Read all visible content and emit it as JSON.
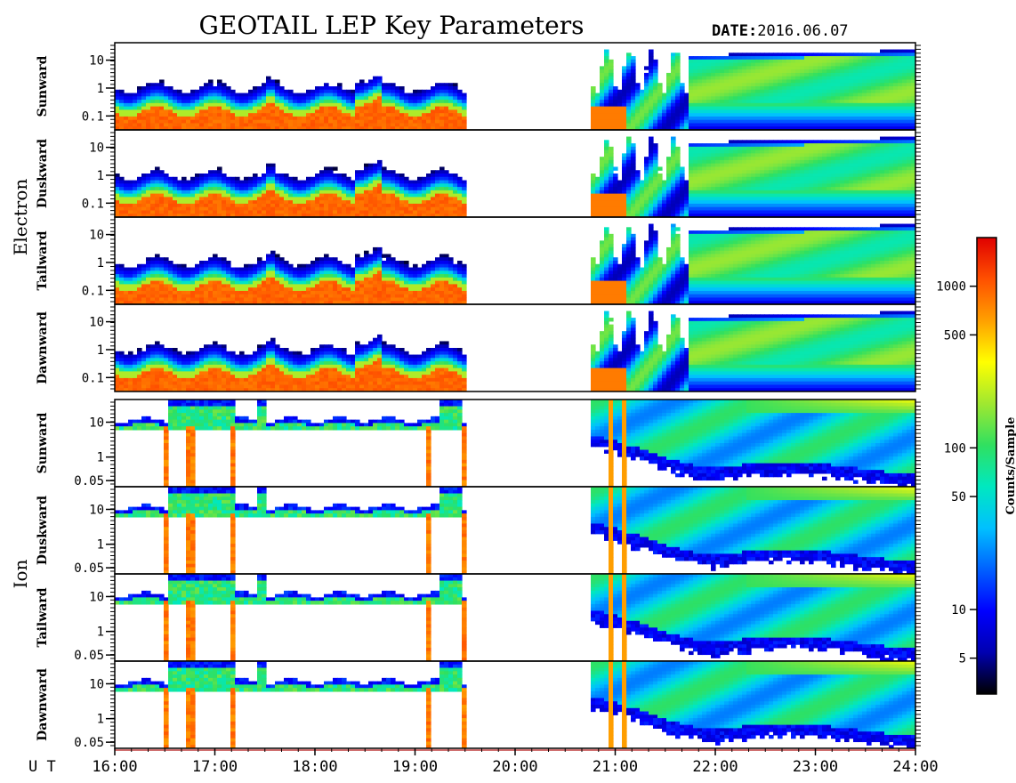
{
  "title": "GEOTAIL LEP Key Parameters",
  "date_label": "DATE:",
  "date_value": "2016.06.07",
  "x_axis_label": "U T",
  "chart_data": {
    "type": "heatmap",
    "x_range_hours": [
      16,
      24
    ],
    "x_ticks": [
      "16:00",
      "17:00",
      "18:00",
      "19:00",
      "20:00",
      "21:00",
      "22:00",
      "23:00",
      "24:00"
    ],
    "data_gap_hours": [
      19.5,
      20.75
    ],
    "log_y": true,
    "groups": [
      {
        "name": "Electron",
        "y_range": [
          0.04,
          25
        ],
        "y_ticks": [
          "10",
          "1",
          "0.1"
        ],
        "panels": [
          "Sunward",
          "Duskward",
          "Tailward",
          "Dawnward"
        ]
      },
      {
        "name": "Ion",
        "y_range": [
          0.04,
          40
        ],
        "y_ticks": [
          "10",
          "1",
          "0.05"
        ],
        "panels": [
          "Sunward",
          "Duskward",
          "Tailward",
          "Dawnward"
        ]
      }
    ],
    "colorbar": {
      "label": "Counts/Sample",
      "scale": "log",
      "range": [
        3,
        2000
      ],
      "ticks": [
        "1000",
        "500",
        "100",
        "50",
        "10",
        "5"
      ],
      "colors": [
        "#000000",
        "#0000b0",
        "#0000ff",
        "#0060ff",
        "#00c0ff",
        "#00e8c0",
        "#30e060",
        "#a0e830",
        "#ffff00",
        "#ffa000",
        "#ff5000",
        "#e00000"
      ]
    }
  }
}
